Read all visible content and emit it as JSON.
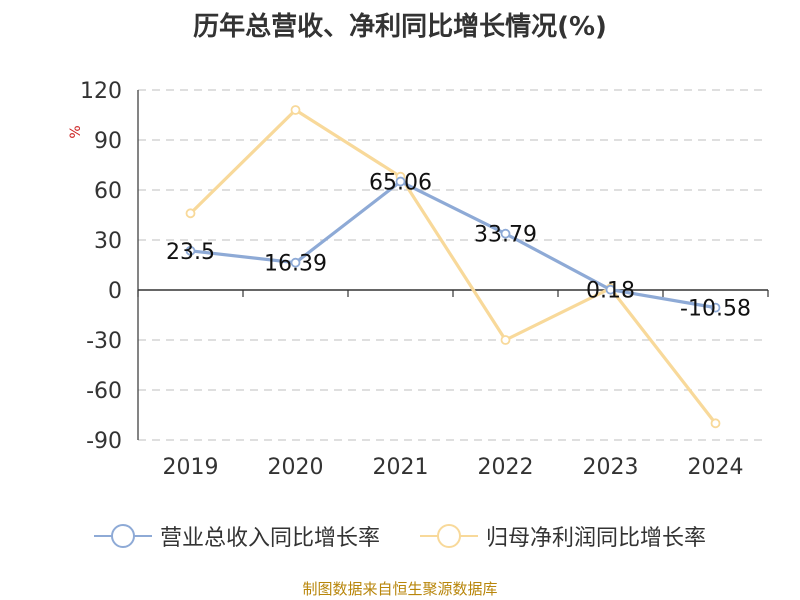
{
  "chart_data": {
    "type": "line",
    "title": "历年总营收、净利同比增长情况(%)",
    "ylabel": "%",
    "categories": [
      "2019",
      "2020",
      "2021",
      "2022",
      "2023",
      "2024"
    ],
    "ylim": [
      -90,
      120
    ],
    "yticks": [
      120,
      90,
      60,
      30,
      0,
      -30,
      -60,
      -90
    ],
    "grid": true,
    "legend_position": "bottom",
    "series": [
      {
        "name": "营业总收入同比增长率",
        "color": "#8eaad6",
        "values": [
          23.5,
          16.39,
          65.06,
          33.79,
          0.18,
          -10.58
        ],
        "labels": [
          "23.5",
          "16.39",
          "65.06",
          "33.79",
          "0.18",
          "-10.58"
        ]
      },
      {
        "name": "归母净利润同比增长率",
        "color": "#f8d99a",
        "values": [
          46,
          108,
          68,
          -30,
          1,
          -80
        ]
      }
    ]
  },
  "source": "制图数据来自恒生聚源数据库"
}
